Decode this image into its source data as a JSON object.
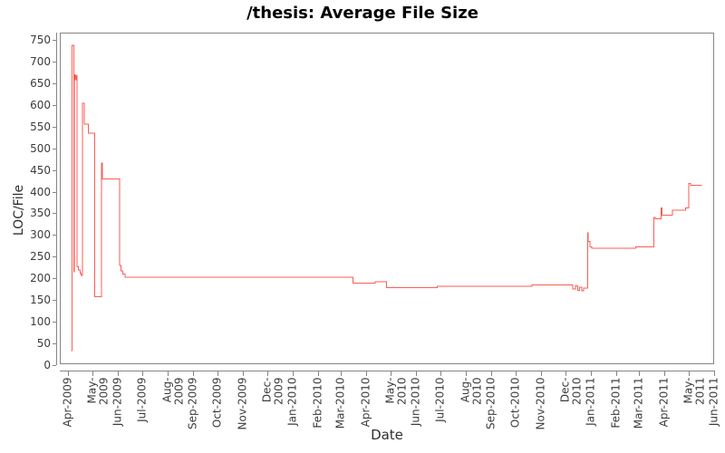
{
  "title": "/thesis: Average File Size",
  "chart_data": {
    "type": "line",
    "interpolation": "step-after",
    "title": "/thesis: Average File Size",
    "xlabel": "Date",
    "ylabel": "LOC/File",
    "ylim": [
      0,
      750
    ],
    "grid": false,
    "legend": "none",
    "line_color": "#f85e55",
    "axis_color": "#858585",
    "y_ticks": [
      0,
      50,
      100,
      150,
      200,
      250,
      300,
      350,
      400,
      450,
      500,
      550,
      600,
      650,
      700,
      750
    ],
    "x_ticks": [
      "Apr-2009",
      "May-2009",
      "Jun-2009",
      "Jul-2009",
      "Aug-2009",
      "Sep-2009",
      "Oct-2009",
      "Nov-2009",
      "Dec-2009",
      "Jan-2010",
      "Feb-2010",
      "Mar-2010",
      "Apr-2010",
      "May-2010",
      "Jun-2010",
      "Jul-2010",
      "Aug-2010",
      "Sep-2010",
      "Oct-2010",
      "Nov-2010",
      "Dec-2010",
      "Jan-2011",
      "Feb-2011",
      "Mar-2011",
      "Apr-2011",
      "May-2011",
      "Jun-2011"
    ],
    "series": [
      {
        "name": "LOC/File",
        "points": [
          [
            "2009-04-05",
            33
          ],
          [
            "2009-04-06",
            737
          ],
          [
            "2009-04-08",
            215
          ],
          [
            "2009-04-09",
            670
          ],
          [
            "2009-04-10",
            658
          ],
          [
            "2009-04-11",
            667
          ],
          [
            "2009-04-12",
            227
          ],
          [
            "2009-04-14",
            219
          ],
          [
            "2009-04-16",
            212
          ],
          [
            "2009-04-17",
            207
          ],
          [
            "2009-04-19",
            604
          ],
          [
            "2009-04-21",
            556
          ],
          [
            "2009-04-26",
            535
          ],
          [
            "2009-05-04",
            158
          ],
          [
            "2009-05-12",
            466
          ],
          [
            "2009-05-13",
            429
          ],
          [
            "2009-06-03",
            230
          ],
          [
            "2009-06-05",
            217
          ],
          [
            "2009-06-07",
            210
          ],
          [
            "2009-06-10",
            203
          ],
          [
            "2010-03-16",
            189
          ],
          [
            "2010-04-12",
            192
          ],
          [
            "2010-04-26",
            179
          ],
          [
            "2010-06-27",
            182
          ],
          [
            "2010-10-21",
            185
          ],
          [
            "2010-12-10",
            176
          ],
          [
            "2010-12-13",
            183
          ],
          [
            "2010-12-16",
            172
          ],
          [
            "2010-12-18",
            180
          ],
          [
            "2010-12-21",
            171
          ],
          [
            "2010-12-23",
            178
          ],
          [
            "2010-12-28",
            305
          ],
          [
            "2010-12-29",
            285
          ],
          [
            "2010-12-31",
            273
          ],
          [
            "2011-01-02",
            269
          ],
          [
            "2011-02-25",
            273
          ],
          [
            "2011-03-19",
            341
          ],
          [
            "2011-03-21",
            337
          ],
          [
            "2011-03-28",
            362
          ],
          [
            "2011-03-29",
            346
          ],
          [
            "2011-04-11",
            357
          ],
          [
            "2011-04-27",
            362
          ],
          [
            "2011-05-01",
            419
          ],
          [
            "2011-05-03",
            415
          ],
          [
            "2011-05-17",
            415
          ]
        ]
      }
    ]
  }
}
